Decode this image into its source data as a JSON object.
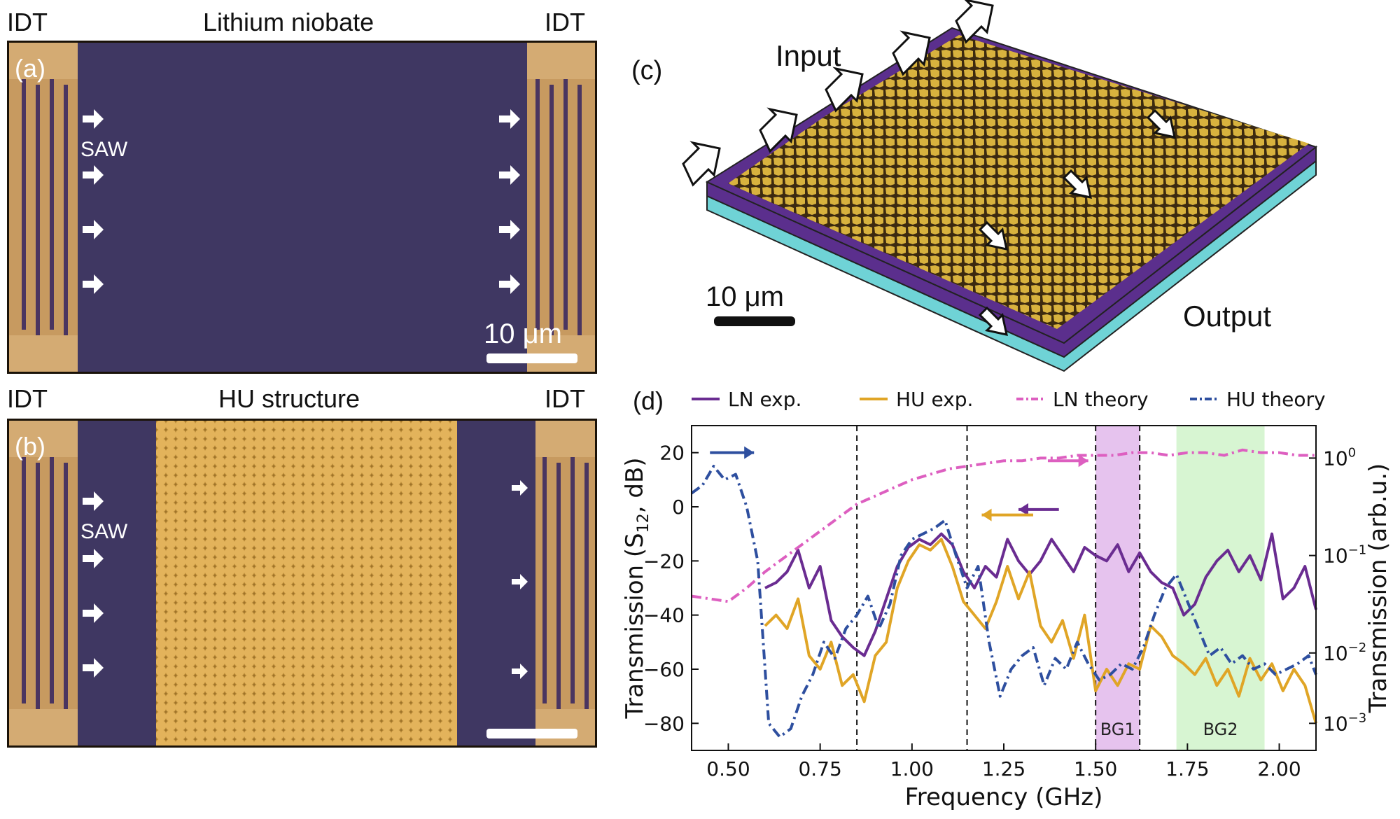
{
  "panel_a": {
    "letter": "(a)",
    "title": "Lithium niobate",
    "idt_left": "IDT",
    "idt_right": "IDT",
    "saw_label": "SAW",
    "scale_label": "10 μm"
  },
  "panel_b": {
    "letter": "(b)",
    "title": "HU structure",
    "idt_left": "IDT",
    "idt_right": "IDT",
    "saw_label": "SAW"
  },
  "panel_c": {
    "letter": "(c)",
    "input_label": "Input",
    "output_label": "Output",
    "scale_label": "10 μm"
  },
  "panel_d": {
    "letter": "(d)"
  },
  "chart_data": {
    "type": "line",
    "xlabel": "Frequency (GHz)",
    "ylabel": "Transmission (S12, dB)",
    "ylabel_main": "Transmission (S",
    "ylabel_sub": "12",
    "ylabel_tail": ", dB)",
    "y2label": "Transmission (arb.u.)",
    "xlim": [
      0.4,
      2.1
    ],
    "ylim": [
      -90,
      30
    ],
    "x_ticks": [
      "0.50",
      "0.75",
      "1.00",
      "1.25",
      "1.50",
      "1.75",
      "2.00"
    ],
    "y_ticks": [
      "20",
      "0",
      "−20",
      "−40",
      "−60",
      "−80"
    ],
    "y2_ticks": [
      {
        "base": "10",
        "exp": "0"
      },
      {
        "base": "10",
        "exp": "−1"
      },
      {
        "base": "10",
        "exp": "−2"
      },
      {
        "base": "10",
        "exp": "−3"
      }
    ],
    "vlines": [
      0.85,
      1.15,
      1.5,
      1.62
    ],
    "bands": [
      {
        "label": "BG1",
        "x0": 1.5,
        "x1": 1.62,
        "color": "#e6c3ee"
      },
      {
        "label": "BG2",
        "x0": 1.72,
        "x1": 1.96,
        "color": "#d7f5d2"
      }
    ],
    "legend": [
      "LN exp.",
      "HU exp.",
      "LN theory",
      "HU theory"
    ],
    "series": [
      {
        "name": "LN exp.",
        "axis": "left",
        "color": "#6a2c91",
        "style": "solid",
        "x": [
          0.6,
          0.63,
          0.66,
          0.69,
          0.72,
          0.75,
          0.78,
          0.81,
          0.84,
          0.87,
          0.9,
          0.93,
          0.96,
          0.99,
          1.02,
          1.05,
          1.08,
          1.11,
          1.14,
          1.17,
          1.2,
          1.23,
          1.26,
          1.29,
          1.32,
          1.35,
          1.38,
          1.41,
          1.44,
          1.47,
          1.5,
          1.53,
          1.56,
          1.59,
          1.62,
          1.65,
          1.68,
          1.71,
          1.74,
          1.77,
          1.8,
          1.83,
          1.86,
          1.89,
          1.92,
          1.95,
          1.98,
          2.01,
          2.04,
          2.07,
          2.1
        ],
        "y": [
          -30,
          -28,
          -24,
          -16,
          -30,
          -22,
          -42,
          -48,
          -52,
          -55,
          -46,
          -34,
          -22,
          -15,
          -12,
          -14,
          -10,
          -14,
          -24,
          -30,
          -22,
          -26,
          -12,
          -20,
          -25,
          -20,
          -12,
          -18,
          -24,
          -15,
          -18,
          -20,
          -14,
          -24,
          -17,
          -24,
          -28,
          -30,
          -40,
          -36,
          -26,
          -20,
          -16,
          -24,
          -18,
          -27,
          -10,
          -34,
          -30,
          -22,
          -38
        ]
      },
      {
        "name": "HU exp.",
        "axis": "left",
        "color": "#e0a526",
        "style": "solid",
        "x": [
          0.6,
          0.63,
          0.66,
          0.69,
          0.72,
          0.75,
          0.78,
          0.81,
          0.84,
          0.87,
          0.9,
          0.93,
          0.96,
          0.99,
          1.02,
          1.05,
          1.08,
          1.11,
          1.14,
          1.17,
          1.2,
          1.23,
          1.26,
          1.29,
          1.32,
          1.35,
          1.38,
          1.41,
          1.44,
          1.47,
          1.5,
          1.53,
          1.56,
          1.59,
          1.62,
          1.65,
          1.68,
          1.71,
          1.74,
          1.77,
          1.8,
          1.83,
          1.86,
          1.89,
          1.92,
          1.95,
          1.98,
          2.01,
          2.04,
          2.07,
          2.1
        ],
        "y": [
          -44,
          -40,
          -45,
          -34,
          -55,
          -60,
          -50,
          -66,
          -62,
          -72,
          -55,
          -50,
          -30,
          -20,
          -14,
          -16,
          -12,
          -22,
          -35,
          -40,
          -45,
          -35,
          -22,
          -34,
          -24,
          -44,
          -50,
          -42,
          -56,
          -40,
          -68,
          -60,
          -66,
          -58,
          -60,
          -44,
          -48,
          -55,
          -58,
          -62,
          -56,
          -66,
          -60,
          -70,
          -56,
          -64,
          -58,
          -68,
          -60,
          -66,
          -80
        ]
      },
      {
        "name": "LN theory",
        "axis": "right",
        "color": "#dd5fc0",
        "style": "dashdot",
        "x": [
          0.4,
          0.5,
          0.55,
          0.6,
          0.65,
          0.7,
          0.75,
          0.8,
          0.85,
          0.9,
          0.95,
          1.0,
          1.05,
          1.1,
          1.15,
          1.2,
          1.25,
          1.3,
          1.35,
          1.4,
          1.45,
          1.5,
          1.55,
          1.6,
          1.65,
          1.7,
          1.75,
          1.8,
          1.85,
          1.9,
          1.95,
          2.0,
          2.05,
          2.1
        ],
        "y": [
          -33,
          -35,
          -30,
          -24,
          -19,
          -14,
          -9,
          -4,
          1,
          4,
          7,
          10,
          12,
          14,
          15,
          16,
          17,
          17,
          18,
          18,
          19,
          19,
          19,
          20,
          20,
          19,
          20,
          20,
          19,
          21,
          20,
          20,
          19,
          19
        ]
      },
      {
        "name": "HU theory",
        "axis": "left",
        "color": "#2e4f9f",
        "style": "dashdot",
        "x": [
          0.4,
          0.43,
          0.46,
          0.49,
          0.52,
          0.55,
          0.58,
          0.61,
          0.64,
          0.67,
          0.7,
          0.73,
          0.76,
          0.79,
          0.82,
          0.85,
          0.88,
          0.91,
          0.94,
          0.97,
          1.0,
          1.03,
          1.06,
          1.09,
          1.12,
          1.15,
          1.18,
          1.21,
          1.24,
          1.27,
          1.3,
          1.33,
          1.36,
          1.39,
          1.42,
          1.45,
          1.48,
          1.51,
          1.54,
          1.57,
          1.6,
          1.63,
          1.66,
          1.69,
          1.72,
          1.75,
          1.78,
          1.81,
          1.84,
          1.87,
          1.9,
          1.93,
          1.96,
          1.99,
          2.02,
          2.05,
          2.08,
          2.1
        ],
        "y": [
          5,
          8,
          15,
          10,
          12,
          0,
          -20,
          -80,
          -85,
          -82,
          -70,
          -62,
          -50,
          -56,
          -45,
          -40,
          -33,
          -45,
          -36,
          -18,
          -12,
          -10,
          -8,
          -5,
          -18,
          -30,
          -22,
          -50,
          -70,
          -60,
          -55,
          -52,
          -66,
          -56,
          -60,
          -50,
          -58,
          -64,
          -62,
          -58,
          -60,
          -52,
          -40,
          -30,
          -25,
          -35,
          -45,
          -55,
          -52,
          -58,
          -55,
          -60,
          -58,
          -62,
          -60,
          -58,
          -55,
          -62
        ]
      }
    ]
  }
}
